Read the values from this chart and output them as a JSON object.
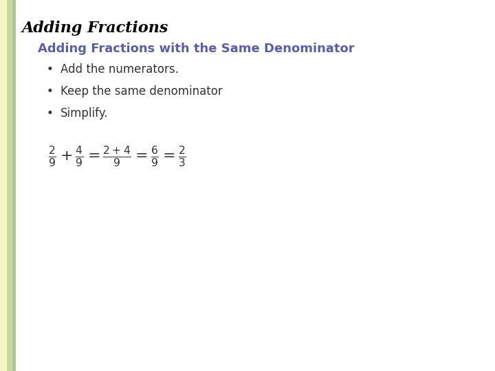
{
  "title": "Adding Fractions",
  "subtitle": "Adding Fractions with the Same Denominator",
  "bullets": [
    "Add the numerators.",
    "Keep the same denominator",
    "Simplify."
  ],
  "title_color": "#000000",
  "subtitle_color": "#5B5EA6",
  "bullet_color": "#333333",
  "bg_color": "#FFFFFF",
  "left_bar_colors": [
    "#F5F5C8",
    "#C8D9A0",
    "#A8C890"
  ],
  "formula_color": "#333333",
  "title_fontsize": 16,
  "subtitle_fontsize": 13,
  "bullet_fontsize": 12,
  "formula_fontsize": 16
}
